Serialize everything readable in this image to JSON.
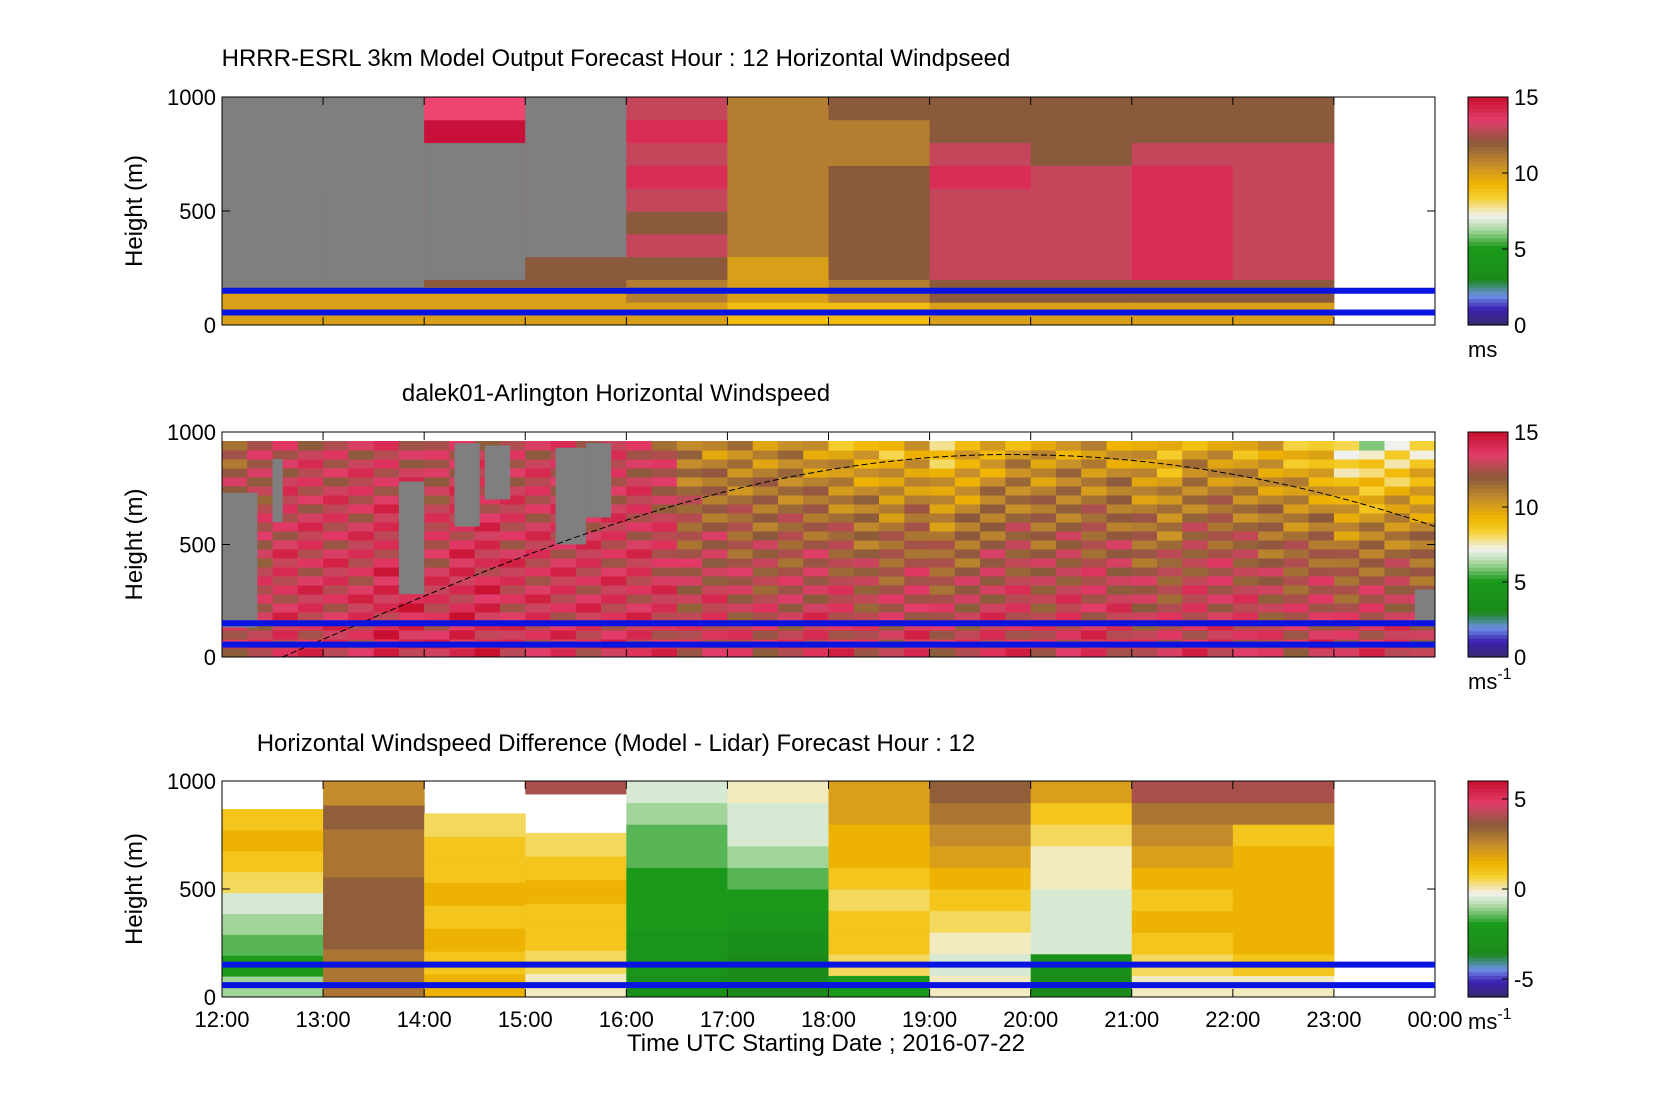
{
  "chart_data": [
    {
      "type": "heatmap",
      "title": "HRRR-ESRL 3km Model Output   Forecast Hour : 12 Horizontal Windpseed",
      "ylabel": "Height (m)",
      "ylim": [
        0,
        1000
      ],
      "yticks": [
        "0",
        "500",
        "1000"
      ],
      "colorbar": {
        "ticks": [
          "0",
          "5",
          "10",
          "15"
        ],
        "range": [
          0,
          15
        ],
        "unit": "ms",
        "unit_sup": ""
      },
      "reference_heights": [
        55,
        150
      ],
      "columns": [
        {
          "x": "12:00",
          "top": 1000,
          "values": [
            10,
            12,
            13,
            14,
            11,
            10,
            6
          ],
          "stripes": [
            {
              "y0": 150,
              "y1": 1000,
              "c": "#7f7f7f"
            }
          ]
        },
        {
          "x": "13:00",
          "top": 1000,
          "values": [
            10,
            12,
            13,
            14,
            11,
            10,
            6
          ],
          "stripes": [
            {
              "y0": 150,
              "y1": 1000,
              "c": "#7f7f7f"
            }
          ]
        },
        {
          "x": "14:00",
          "top": 1000,
          "values": [
            10,
            12,
            13,
            14,
            13,
            14
          ],
          "stripes": [
            {
              "y0": 200,
              "y1": 800,
              "c": "#7f7f7f"
            },
            {
              "y0": 800,
              "y1": 900,
              "c": "#c8103a"
            },
            {
              "y0": 900,
              "y1": 1000,
              "c": "#ee4570"
            }
          ]
        },
        {
          "x": "15:00",
          "top": 1000,
          "values": [
            10,
            12,
            13,
            14,
            14,
            13
          ],
          "stripes": [
            {
              "y0": 300,
              "y1": 1000,
              "c": "#7f7f7f"
            }
          ]
        },
        {
          "x": "16:00",
          "top": 1000,
          "values": [
            10,
            11,
            12,
            13,
            12,
            13,
            14,
            13,
            14,
            13
          ]
        },
        {
          "x": "17:00",
          "top": 1000,
          "values": [
            9,
            10,
            10,
            11,
            11,
            11,
            11,
            11,
            11,
            11
          ]
        },
        {
          "x": "18:00",
          "top": 1000,
          "values": [
            9,
            11,
            12,
            12,
            12,
            12,
            12,
            11,
            11,
            12
          ]
        },
        {
          "x": "19:00",
          "top": 1000,
          "values": [
            10,
            12,
            13,
            13,
            13,
            13,
            14,
            13,
            12,
            12
          ]
        },
        {
          "x": "20:00",
          "top": 1000,
          "values": [
            10,
            12,
            13,
            13,
            13,
            13,
            13,
            12,
            12,
            12
          ]
        },
        {
          "x": "21:00",
          "top": 1000,
          "values": [
            10,
            12,
            14,
            14,
            14,
            14,
            14,
            13,
            12,
            12
          ]
        },
        {
          "x": "22:00",
          "top": 1000,
          "values": [
            10,
            12,
            13,
            13,
            13,
            13,
            13,
            13,
            12,
            12
          ]
        }
      ]
    },
    {
      "type": "heatmap",
      "title": "dalek01-Arlington  Horizontal Windspeed",
      "ylabel": "Height (m)",
      "ylim": [
        0,
        1000
      ],
      "yticks": [
        "0",
        "500",
        "1000"
      ],
      "colorbar": {
        "ticks": [
          "0",
          "5",
          "10",
          "15"
        ],
        "range": [
          0,
          15
        ],
        "unit": "ms",
        "unit_sup": "-1"
      },
      "reference_heights": [
        55,
        150
      ],
      "midday_curve": {
        "x_start": 12.6,
        "x_peak": 19.8,
        "x_end": 24,
        "y_start": 0,
        "y_peak": 900,
        "y_end": 580
      },
      "column_hours": [
        12.0,
        12.25,
        12.5,
        12.75,
        13.0,
        13.25,
        13.5,
        13.75,
        14.0,
        14.25,
        14.5,
        14.75,
        15.0,
        15.25,
        15.5,
        15.75,
        16.0,
        16.25,
        16.5,
        16.75,
        17.0,
        17.25,
        17.5,
        17.75,
        18.0,
        18.25,
        18.5,
        18.75,
        19.0,
        19.25,
        19.5,
        19.75,
        20.0,
        20.25,
        20.5,
        20.75,
        21.0,
        21.25,
        21.5,
        21.75,
        22.0,
        22.25,
        22.5,
        22.75,
        23.0,
        23.25,
        23.5,
        23.75
      ],
      "column_top_speed": [
        12.0,
        12.5,
        13.0,
        13.0,
        13.0,
        13.0,
        13.0,
        13.0,
        12.5,
        13.0,
        13.0,
        13.0,
        13.0,
        13.0,
        13.0,
        13.0,
        13.0,
        12.5,
        11.0,
        10.5,
        10.5,
        10.5,
        10.5,
        10.0,
        9.5,
        9.5,
        9.0,
        9.5,
        8.5,
        9.0,
        9.5,
        10.0,
        10.0,
        10.0,
        10.0,
        10.0,
        9.5,
        9.0,
        10.0,
        10.0,
        9.5,
        9.5,
        9.0,
        8.5,
        7.5,
        7.0,
        7.5,
        8.0
      ],
      "column_low_speed": [
        13.0,
        13.0,
        13.5,
        13.5,
        13.5,
        13.5,
        14.0,
        14.0,
        13.5,
        14.0,
        14.0,
        13.5,
        13.5,
        13.5,
        13.5,
        13.5,
        13.5,
        13.5,
        13.0,
        13.5,
        13.0,
        13.0,
        13.0,
        13.5,
        13.5,
        13.0,
        13.0,
        13.5,
        13.0,
        13.0,
        13.5,
        13.5,
        13.0,
        13.5,
        13.5,
        13.5,
        13.0,
        13.0,
        13.5,
        13.5,
        13.5,
        13.0,
        13.0,
        13.5,
        13.0,
        13.5,
        13.5,
        13.0
      ],
      "gray_bands": [
        {
          "x0": 12.0,
          "x1": 12.35,
          "y0": 130,
          "y1": 730
        },
        {
          "x0": 12.5,
          "x1": 12.6,
          "y0": 600,
          "y1": 880
        },
        {
          "x0": 13.75,
          "x1": 14.0,
          "y0": 280,
          "y1": 780
        },
        {
          "x0": 14.3,
          "x1": 14.55,
          "y0": 580,
          "y1": 950
        },
        {
          "x0": 14.6,
          "x1": 14.85,
          "y0": 700,
          "y1": 940
        },
        {
          "x0": 15.3,
          "x1": 15.6,
          "y0": 500,
          "y1": 930
        },
        {
          "x0": 15.6,
          "x1": 15.85,
          "y0": 620,
          "y1": 950
        },
        {
          "x0": 23.8,
          "x1": 24.0,
          "y0": 150,
          "y1": 300
        }
      ]
    },
    {
      "type": "heatmap",
      "title": "Horizontal Windspeed Difference (Model - Lidar) Forecast Hour : 12",
      "ylabel": "Height (m)",
      "xlabel": "Time UTC  Starting Date ; 2016-07-22",
      "ylim": [
        0,
        1000
      ],
      "yticks": [
        "0",
        "500",
        "1000"
      ],
      "xticks": [
        "12:00",
        "13:00",
        "14:00",
        "15:00",
        "16:00",
        "17:00",
        "18:00",
        "19:00",
        "20:00",
        "21:00",
        "22:00",
        "23:00",
        "00:00"
      ],
      "colorbar": {
        "ticks": [
          "-5",
          "0",
          "5"
        ],
        "range": [
          -6,
          6
        ],
        "unit": "ms",
        "unit_sup": "-1"
      },
      "reference_heights": [
        55,
        150
      ],
      "columns": [
        {
          "x": "12:00",
          "top": 870,
          "values": [
            -1.0,
            -2.0,
            -1.5,
            -1.0,
            -0.5,
            0.5,
            1.0,
            1.5,
            1.0
          ]
        },
        {
          "x": "13:00",
          "top": 1000,
          "values": [
            3.0,
            3.0,
            3.5,
            3.5,
            3.5,
            3.0,
            3.0,
            3.5,
            2.5
          ]
        },
        {
          "x": "14:00",
          "top": 850,
          "values": [
            1.5,
            1.0,
            1.5,
            1.0,
            1.5,
            1.0,
            1.0,
            0.5
          ]
        },
        {
          "x": "15:00",
          "top": 760,
          "values": [
            0.0,
            0.5,
            1.0,
            1.0,
            1.5,
            1.0,
            0.5
          ],
          "extra_top": {
            "y0": 940,
            "y1": 1000,
            "v": 4.0
          }
        },
        {
          "x": "16:00",
          "top": 1000,
          "values": [
            -3.0,
            -2.5,
            -2.5,
            -2.0,
            -2.0,
            -2.0,
            -1.5,
            -1.5,
            -1.0,
            -0.5
          ]
        },
        {
          "x": "17:00",
          "top": 1000,
          "values": [
            -3.5,
            -3.5,
            -3.0,
            -2.5,
            -2.0,
            -1.5,
            -1.0,
            -0.5,
            -0.5,
            0.0
          ]
        },
        {
          "x": "18:00",
          "top": 1000,
          "values": [
            -2.0,
            0.5,
            1.0,
            1.0,
            0.5,
            1.0,
            1.5,
            1.5,
            2.0,
            2.0
          ]
        },
        {
          "x": "19:00",
          "top": 1000,
          "values": [
            0.0,
            -0.5,
            0.0,
            0.5,
            1.0,
            1.5,
            2.0,
            2.5,
            3.0,
            3.5
          ]
        },
        {
          "x": "20:00",
          "top": 1000,
          "values": [
            -3.5,
            -3.0,
            -0.5,
            -0.5,
            -0.5,
            0.0,
            0.0,
            0.5,
            1.0,
            2.0
          ]
        },
        {
          "x": "21:00",
          "top": 1000,
          "values": [
            0.0,
            0.5,
            1.0,
            1.5,
            1.0,
            1.5,
            2.0,
            2.5,
            3.0,
            4.0
          ]
        },
        {
          "x": "22:00",
          "top": 1000,
          "values": [
            0.0,
            1.0,
            1.5,
            1.5,
            1.5,
            1.5,
            1.5,
            1.0,
            3.0,
            4.0
          ]
        }
      ]
    }
  ]
}
